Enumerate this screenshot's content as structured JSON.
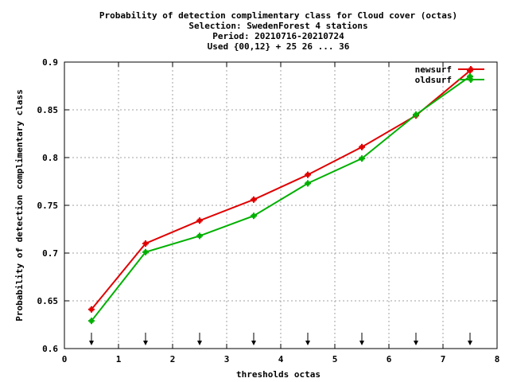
{
  "chart_data": {
    "type": "line",
    "title_lines": [
      "Probability of detection complimentary class  for Cloud cover (octas)",
      "Selection: SwedenForest      4 stations",
      "Period: 20210716-20210724",
      "Used {00,12} + 25 26 ... 36"
    ],
    "xlabel": "thresholds octas",
    "ylabel": "Probability of detection complimentary class",
    "xlim": [
      0,
      8
    ],
    "ylim": [
      0.6,
      0.9
    ],
    "xticks": [
      0,
      1,
      2,
      3,
      4,
      5,
      6,
      7,
      8
    ],
    "yticks": [
      0.6,
      0.65,
      0.7,
      0.75,
      0.8,
      0.85,
      0.9
    ],
    "xtick_labels": [
      "0",
      "1",
      "2",
      "3",
      "4",
      "5",
      "6",
      "7",
      "8"
    ],
    "ytick_labels": [
      "0.6",
      "0.65",
      "0.7",
      "0.75",
      "0.8",
      "0.85",
      "0.9"
    ],
    "grid": true,
    "legend_position": "top-right",
    "threshold_markers_x": [
      0.5,
      1.5,
      2.5,
      3.5,
      4.5,
      5.5,
      6.5,
      7.5
    ],
    "series": [
      {
        "name": "newsurf",
        "color": "#e00000",
        "x": [
          0.5,
          1.5,
          2.5,
          3.5,
          4.5,
          5.5,
          6.5,
          7.5
        ],
        "values": [
          0.641,
          0.71,
          0.734,
          0.756,
          0.782,
          0.811,
          0.844,
          0.891
        ]
      },
      {
        "name": "oldsurf",
        "color": "#00b000",
        "x": [
          0.5,
          1.5,
          2.5,
          3.5,
          4.5,
          5.5,
          6.5,
          7.5
        ],
        "values": [
          0.629,
          0.701,
          0.718,
          0.739,
          0.773,
          0.799,
          0.845,
          0.885
        ]
      }
    ]
  }
}
